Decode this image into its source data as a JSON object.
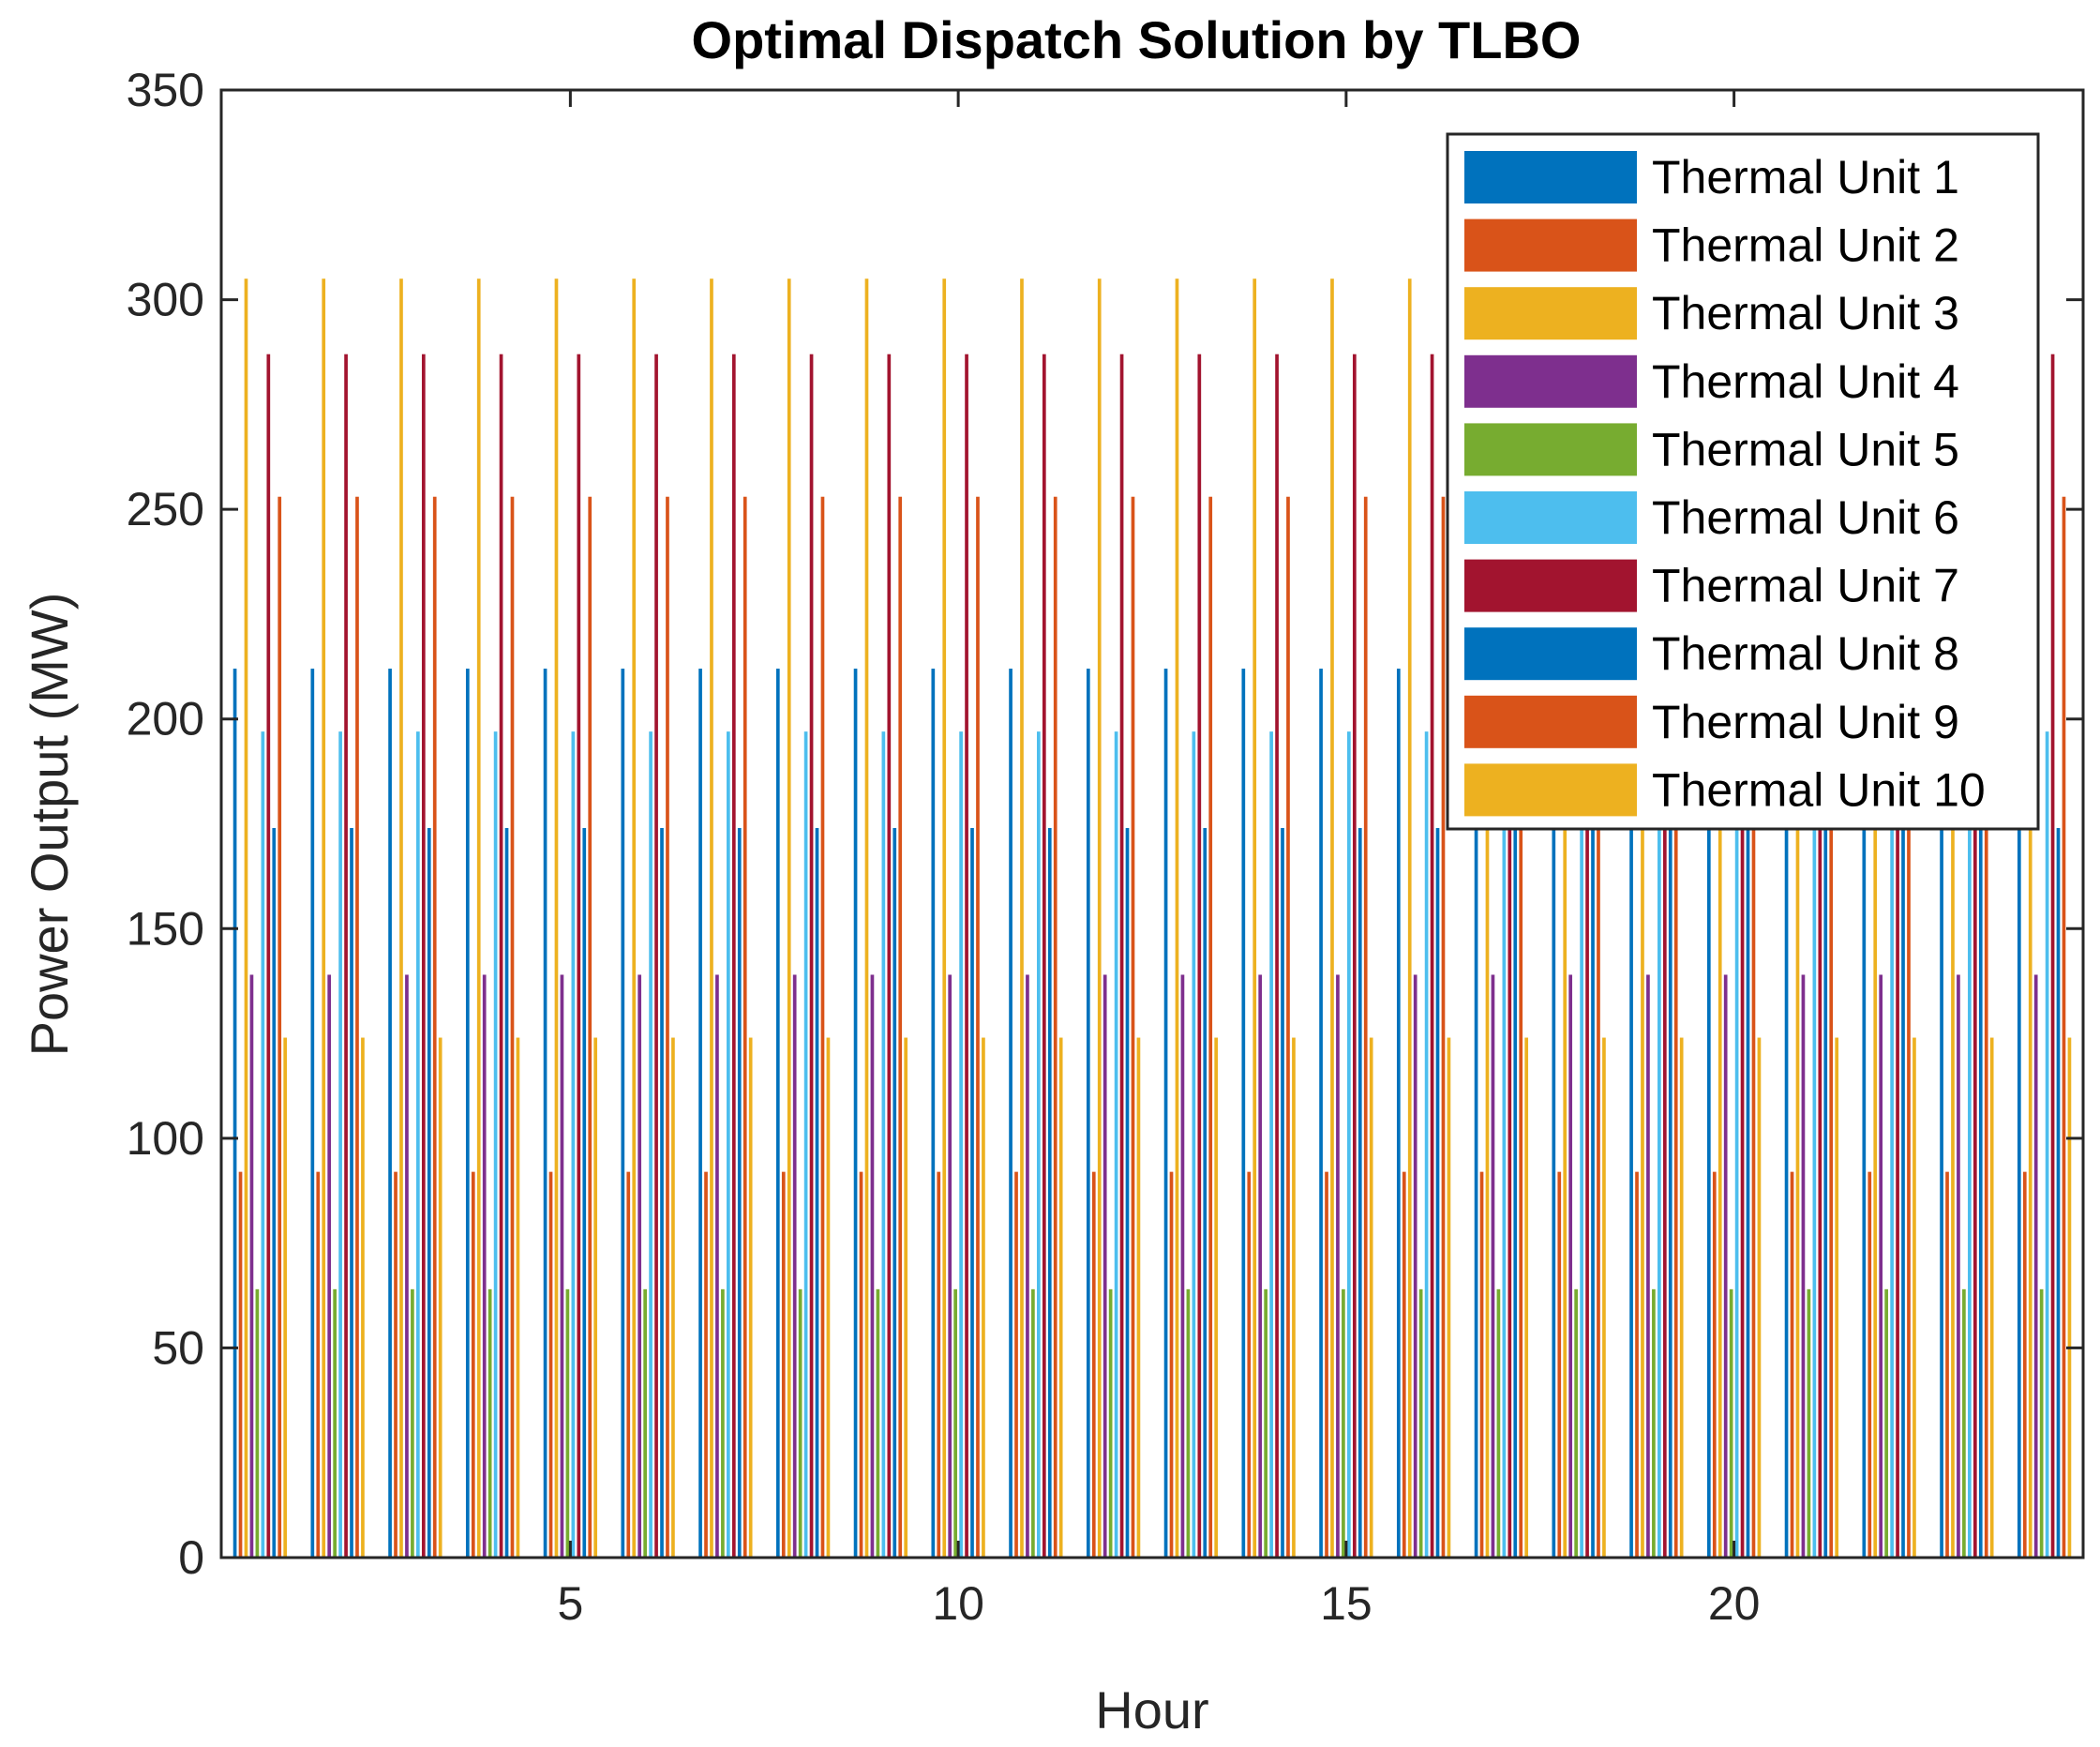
{
  "chart_data": {
    "type": "bar",
    "title": "Optimal Dispatch Solution by TLBO",
    "xlabel": "Hour",
    "ylabel": "Power Output (MW)",
    "categories": [
      1,
      2,
      3,
      4,
      5,
      6,
      7,
      8,
      9,
      10,
      11,
      12,
      13,
      14,
      15,
      16,
      17,
      18,
      19,
      20,
      21,
      22,
      23,
      24
    ],
    "xlim": [
      0.5,
      24.5
    ],
    "ylim": [
      0,
      350
    ],
    "xticks": [
      5,
      10,
      15,
      20
    ],
    "yticks": [
      0,
      50,
      100,
      150,
      200,
      250,
      300,
      350
    ],
    "legend_position": "top-right",
    "grid": false,
    "series": [
      {
        "name": "Thermal Unit 1",
        "color": "#0072BD",
        "values": [
          212,
          212,
          212,
          212,
          212,
          212,
          212,
          212,
          212,
          212,
          212,
          212,
          212,
          212,
          212,
          212,
          212,
          212,
          212,
          212,
          212,
          212,
          212,
          212
        ]
      },
      {
        "name": "Thermal Unit 2",
        "color": "#D95319",
        "values": [
          92,
          92,
          92,
          92,
          92,
          92,
          92,
          92,
          92,
          92,
          92,
          92,
          92,
          92,
          92,
          92,
          92,
          92,
          92,
          92,
          92,
          92,
          92,
          92
        ]
      },
      {
        "name": "Thermal Unit 3",
        "color": "#EDB120",
        "values": [
          305,
          305,
          305,
          305,
          305,
          305,
          305,
          305,
          305,
          305,
          305,
          305,
          305,
          305,
          305,
          305,
          305,
          305,
          305,
          305,
          305,
          305,
          305,
          305
        ]
      },
      {
        "name": "Thermal Unit 4",
        "color": "#7E2F8E",
        "values": [
          139,
          139,
          139,
          139,
          139,
          139,
          139,
          139,
          139,
          139,
          139,
          139,
          139,
          139,
          139,
          139,
          139,
          139,
          139,
          139,
          139,
          139,
          139,
          139
        ]
      },
      {
        "name": "Thermal Unit 5",
        "color": "#77AC30",
        "values": [
          64,
          64,
          64,
          64,
          64,
          64,
          64,
          64,
          64,
          64,
          64,
          64,
          64,
          64,
          64,
          64,
          64,
          64,
          64,
          64,
          64,
          64,
          64,
          64
        ]
      },
      {
        "name": "Thermal Unit 6",
        "color": "#4DBEEE",
        "values": [
          197,
          197,
          197,
          197,
          197,
          197,
          197,
          197,
          197,
          197,
          197,
          197,
          197,
          197,
          197,
          197,
          197,
          197,
          197,
          197,
          197,
          197,
          197,
          197
        ]
      },
      {
        "name": "Thermal Unit 7",
        "color": "#A2142F",
        "values": [
          287,
          287,
          287,
          287,
          287,
          287,
          287,
          287,
          287,
          287,
          287,
          287,
          287,
          287,
          287,
          287,
          287,
          287,
          287,
          287,
          287,
          287,
          287,
          287
        ]
      },
      {
        "name": "Thermal Unit 8",
        "color": "#0072BD",
        "values": [
          174,
          174,
          174,
          174,
          174,
          174,
          174,
          174,
          174,
          174,
          174,
          174,
          174,
          174,
          174,
          174,
          174,
          174,
          174,
          174,
          174,
          174,
          174,
          174
        ]
      },
      {
        "name": "Thermal Unit 9",
        "color": "#D95319",
        "values": [
          253,
          253,
          253,
          253,
          253,
          253,
          253,
          253,
          253,
          253,
          253,
          253,
          253,
          253,
          253,
          253,
          253,
          253,
          253,
          253,
          253,
          253,
          253,
          253
        ]
      },
      {
        "name": "Thermal Unit 10",
        "color": "#EDB120",
        "values": [
          124,
          124,
          124,
          124,
          124,
          124,
          124,
          124,
          124,
          124,
          124,
          124,
          124,
          124,
          124,
          124,
          124,
          124,
          124,
          124,
          124,
          124,
          124,
          124
        ]
      }
    ]
  }
}
